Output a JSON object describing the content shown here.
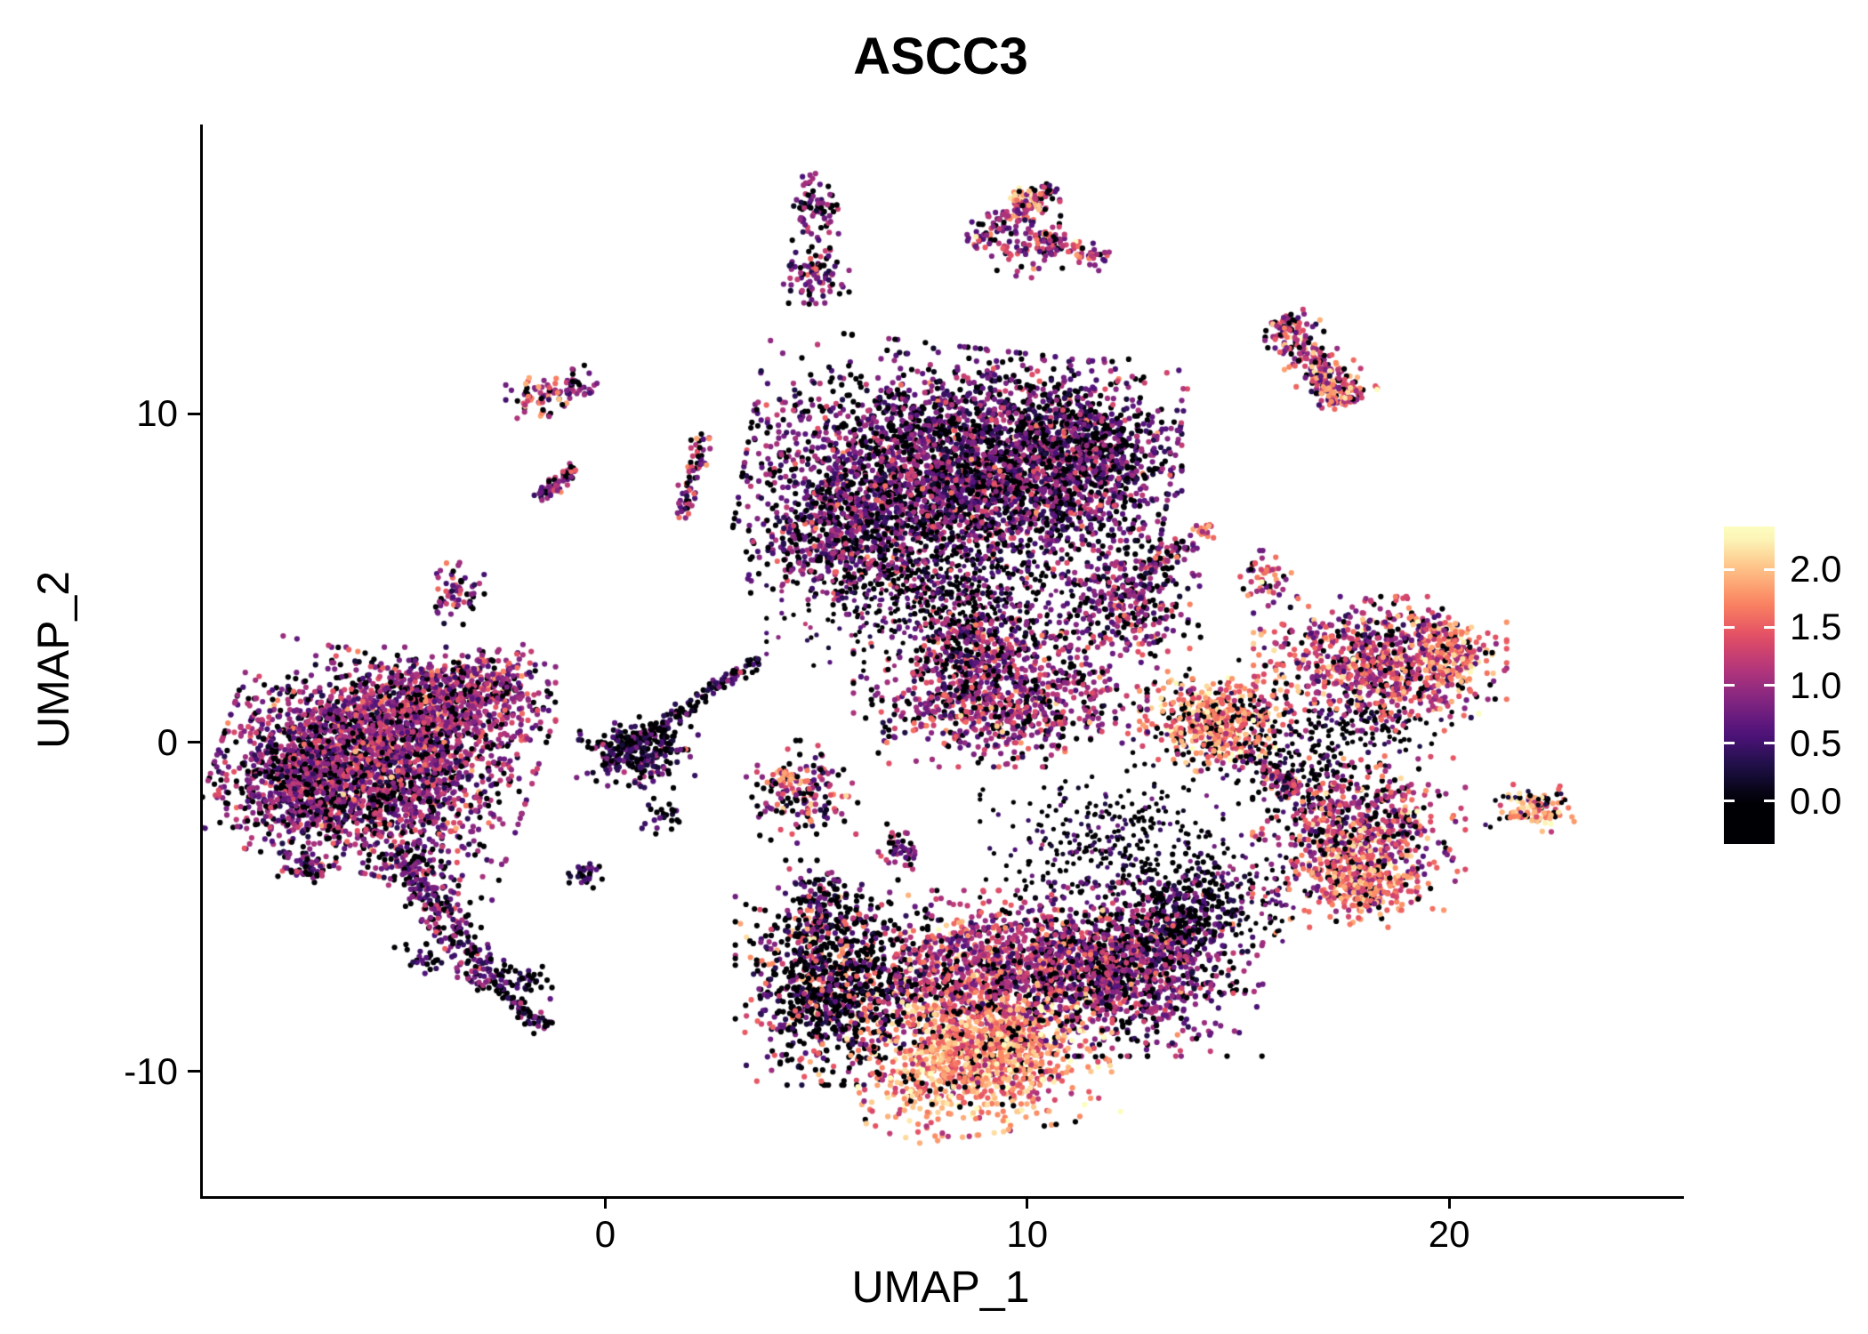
{
  "title": "ASCC3",
  "chart_data": {
    "type": "scatter",
    "title": "ASCC3",
    "xlabel": "UMAP_1",
    "ylabel": "UMAP_2",
    "x_range": [
      -9.6,
      25.5
    ],
    "y_range": [
      -13.8,
      18.8
    ],
    "x_ticks": [
      {
        "value": 0,
        "label": "0"
      },
      {
        "value": 10,
        "label": "10"
      },
      {
        "value": 20,
        "label": "20"
      }
    ],
    "y_ticks": [
      {
        "value": -10,
        "label": "-10"
      },
      {
        "value": 0,
        "label": "0"
      },
      {
        "value": 10,
        "label": "10"
      }
    ],
    "grid": false,
    "background": "#ffffff",
    "legend_position": "right",
    "colorbar": {
      "ticks": [
        {
          "value": 2.0,
          "label": "2.0"
        },
        {
          "value": 1.5,
          "label": "1.5"
        },
        {
          "value": 1.0,
          "label": "1.0"
        },
        {
          "value": 0.5,
          "label": "0.5"
        },
        {
          "value": 0.0,
          "label": "0.0"
        }
      ],
      "bar_value_top": 2.37,
      "bar_value_bottom": -0.37,
      "value_max": 2.3
    },
    "colormap": {
      "name": "magma",
      "stops": [
        [
          0,
          "#000004"
        ],
        [
          0.125,
          "#1c1044"
        ],
        [
          0.25,
          "#4f127b"
        ],
        [
          0.375,
          "#812581"
        ],
        [
          0.5,
          "#b5367a"
        ],
        [
          0.625,
          "#e55064"
        ],
        [
          0.75,
          "#fb8761"
        ],
        [
          0.875,
          "#fec287"
        ],
        [
          1,
          "#fcfdbf"
        ]
      ]
    },
    "point_radius_px": 3.1,
    "clusters": [
      {
        "name": "left-main",
        "shape": "blob",
        "cx": -5.5,
        "cy": -0.7,
        "sx": 1.55,
        "sy": 1.35,
        "rot": -15,
        "n": 2400,
        "expr_mean": 0.95,
        "expr_sd": 0.38,
        "zero_frac": 0.2
      },
      {
        "name": "left-main-top",
        "shape": "blob",
        "cx": -4.0,
        "cy": 1.1,
        "sx": 1.15,
        "sy": 0.75,
        "n": 650,
        "expr_mean": 1.0,
        "expr_sd": 0.35,
        "zero_frac": 0.18
      },
      {
        "name": "left-main-west",
        "shape": "blob",
        "cx": -7.3,
        "cy": -1.2,
        "sx": 0.8,
        "sy": 0.9,
        "n": 450,
        "expr_mean": 0.8,
        "expr_sd": 0.35,
        "zero_frac": 0.3
      },
      {
        "name": "left-arm-ne",
        "shape": "blob",
        "cx": -2.7,
        "cy": 1.9,
        "sx": 0.5,
        "sy": 0.45,
        "n": 130,
        "expr_mean": 1.05,
        "expr_sd": 0.35,
        "zero_frac": 0.2
      },
      {
        "name": "left-tail",
        "shape": "strip",
        "x1": -5.0,
        "y1": -3.2,
        "x2": -2.7,
        "y2": -7.4,
        "sigma": 0.3,
        "n": 300,
        "expr_mean": 0.75,
        "expr_sd": 0.35,
        "zero_frac": 0.3
      },
      {
        "name": "left-tail-tip",
        "shape": "strip",
        "x1": -2.7,
        "y1": -7.4,
        "x2": -1.5,
        "y2": -8.7,
        "sigma": 0.12,
        "n": 70,
        "expr_mean": 0.6,
        "expr_sd": 0.3,
        "zero_frac": 0.4
      },
      {
        "name": "left-satellite-sw",
        "shape": "blob",
        "cx": -7.1,
        "cy": -3.9,
        "sx": 0.3,
        "sy": 0.2,
        "n": 45,
        "expr_mean": 0.8,
        "expr_sd": 0.3,
        "zero_frac": 0.3
      },
      {
        "name": "sat-upper-left",
        "shape": "blob",
        "cx": -3.6,
        "cy": 4.6,
        "sx": 0.28,
        "sy": 0.42,
        "n": 60,
        "expr_mean": 0.9,
        "expr_sd": 0.35,
        "zero_frac": 0.2
      },
      {
        "name": "sat-strand-nw",
        "shape": "strip",
        "x1": -1.6,
        "y1": 7.4,
        "x2": -0.8,
        "y2": 8.4,
        "sigma": 0.12,
        "n": 55,
        "expr_mean": 1.0,
        "expr_sd": 0.4,
        "zero_frac": 0.2
      },
      {
        "name": "sat-nw-orange",
        "shape": "blob",
        "cx": -1.7,
        "cy": 10.5,
        "sx": 0.3,
        "sy": 0.3,
        "n": 55,
        "expr_mean": 1.3,
        "expr_sd": 0.4,
        "zero_frac": 0.15
      },
      {
        "name": "sat-nw-purple",
        "shape": "blob",
        "cx": -0.8,
        "cy": 10.8,
        "sx": 0.25,
        "sy": 0.28,
        "n": 45,
        "expr_mean": 0.9,
        "expr_sd": 0.3,
        "zero_frac": 0.2
      },
      {
        "name": "sat-small-dark-a",
        "shape": "blob",
        "cx": -0.5,
        "cy": -4.0,
        "sx": 0.25,
        "sy": 0.18,
        "n": 28,
        "expr_mean": 0.5,
        "expr_sd": 0.3,
        "zero_frac": 0.5
      },
      {
        "name": "sat-small-dark-b",
        "shape": "blob",
        "cx": -4.5,
        "cy": -6.6,
        "sx": 0.25,
        "sy": 0.22,
        "n": 26,
        "expr_mean": 0.4,
        "expr_sd": 0.3,
        "zero_frac": 0.55
      },
      {
        "name": "sat-small-dark-c",
        "shape": "blob",
        "cx": -1.9,
        "cy": -7.2,
        "sx": 0.3,
        "sy": 0.25,
        "n": 30,
        "expr_mean": 0.5,
        "expr_sd": 0.3,
        "zero_frac": 0.5
      },
      {
        "name": "sat-small-dark-d",
        "shape": "blob",
        "cx": 1.3,
        "cy": -2.3,
        "sx": 0.25,
        "sy": 0.25,
        "n": 24,
        "expr_mean": 0.5,
        "expr_sd": 0.3,
        "zero_frac": 0.5
      },
      {
        "name": "bridge-knot",
        "shape": "blob",
        "cx": 0.7,
        "cy": -0.3,
        "sx": 0.6,
        "sy": 0.45,
        "n": 240,
        "expr_mean": 0.55,
        "expr_sd": 0.32,
        "zero_frac": 0.45
      },
      {
        "name": "bridge-diagonal",
        "shape": "strip",
        "x1": -0.2,
        "y1": -0.8,
        "x2": 3.6,
        "y2": 2.6,
        "sigma": 0.12,
        "n": 150,
        "expr_mean": 0.5,
        "expr_sd": 0.3,
        "zero_frac": 0.5
      },
      {
        "name": "strand-vertical",
        "shape": "strip",
        "x1": 1.8,
        "y1": 6.8,
        "x2": 2.2,
        "y2": 9.4,
        "sigma": 0.12,
        "n": 70,
        "expr_mean": 1.0,
        "expr_sd": 0.45,
        "zero_frac": 0.25
      },
      {
        "name": "top-main",
        "shape": "blob",
        "cx": 8.3,
        "cy": 8.3,
        "sx": 2.1,
        "sy": 1.55,
        "rot": -8,
        "n": 3000,
        "expr_mean": 0.75,
        "expr_sd": 0.4,
        "zero_frac": 0.3
      },
      {
        "name": "top-main-east",
        "shape": "blob",
        "cx": 11.2,
        "cy": 8.9,
        "sx": 1.0,
        "sy": 1.15,
        "n": 750,
        "expr_mean": 0.7,
        "expr_sd": 0.4,
        "zero_frac": 0.32
      },
      {
        "name": "top-main-sw",
        "shape": "blob",
        "cx": 5.5,
        "cy": 6.3,
        "sx": 1.0,
        "sy": 1.0,
        "n": 500,
        "expr_mean": 0.8,
        "expr_sd": 0.4,
        "zero_frac": 0.28
      },
      {
        "name": "top-main-spray-south",
        "shape": "blob",
        "cx": 7.6,
        "cy": 4.6,
        "sx": 1.6,
        "sy": 0.9,
        "n": 380,
        "expr_mean": 0.55,
        "expr_sd": 0.35,
        "zero_frac": 0.5,
        "r": 2.6
      },
      {
        "name": "sat-top-a",
        "shape": "blob",
        "cx": 4.9,
        "cy": 16.3,
        "sx": 0.3,
        "sy": 0.42,
        "n": 70,
        "expr_mean": 0.8,
        "expr_sd": 0.35,
        "zero_frac": 0.3
      },
      {
        "name": "sat-top-b",
        "shape": "blob",
        "cx": 4.9,
        "cy": 14.2,
        "sx": 0.34,
        "sy": 0.45,
        "n": 90,
        "expr_mean": 0.85,
        "expr_sd": 0.35,
        "zero_frac": 0.25
      },
      {
        "name": "top-claw-main",
        "shape": "strip",
        "x1": 8.6,
        "y1": 15.1,
        "x2": 10.6,
        "y2": 16.9,
        "sigma": 0.22,
        "n": 130,
        "expr_mean": 1.1,
        "expr_sd": 0.45,
        "zero_frac": 0.2
      },
      {
        "name": "top-claw-body",
        "shape": "blob",
        "cx": 10.1,
        "cy": 15.1,
        "sx": 0.5,
        "sy": 0.4,
        "n": 80,
        "expr_mean": 1.0,
        "expr_sd": 0.4,
        "zero_frac": 0.2
      },
      {
        "name": "top-claw-arm",
        "shape": "strip",
        "x1": 10.4,
        "y1": 15.4,
        "x2": 11.8,
        "y2": 14.6,
        "sigma": 0.15,
        "n": 60,
        "expr_mean": 1.2,
        "expr_sd": 0.45,
        "zero_frac": 0.15
      },
      {
        "name": "top-claw-hot",
        "shape": "blob",
        "cx": 9.9,
        "cy": 16.5,
        "sx": 0.18,
        "sy": 0.18,
        "n": 25,
        "expr_mean": 1.9,
        "expr_sd": 0.2,
        "zero_frac": 0.0
      },
      {
        "name": "right-top-diag",
        "shape": "strip",
        "x1": 15.9,
        "y1": 12.9,
        "x2": 17.6,
        "y2": 10.3,
        "sigma": 0.33,
        "n": 260,
        "expr_mean": 1.2,
        "expr_sd": 0.45,
        "zero_frac": 0.15
      },
      {
        "name": "right-top-hot",
        "shape": "blob",
        "cx": 17.3,
        "cy": 10.7,
        "sx": 0.25,
        "sy": 0.25,
        "n": 45,
        "expr_mean": 1.8,
        "expr_sd": 0.25,
        "zero_frac": 0.0
      },
      {
        "name": "center-main",
        "shape": "blob",
        "cx": 9.3,
        "cy": 1.3,
        "sx": 1.45,
        "sy": 0.85,
        "n": 850,
        "expr_mean": 1.0,
        "expr_sd": 0.42,
        "zero_frac": 0.2
      },
      {
        "name": "center-upper",
        "shape": "blob",
        "cx": 8.8,
        "cy": 3.1,
        "sx": 0.9,
        "sy": 0.6,
        "n": 280,
        "expr_mean": 0.9,
        "expr_sd": 0.4,
        "zero_frac": 0.25
      },
      {
        "name": "center-spray",
        "shape": "blob",
        "cx": 8.2,
        "cy": 4.4,
        "sx": 1.7,
        "sy": 1.0,
        "n": 320,
        "expr_mean": 0.7,
        "expr_sd": 0.45,
        "zero_frac": 0.4,
        "r": 2.6
      },
      {
        "name": "center-claw",
        "shape": "blob",
        "cx": 12.3,
        "cy": 4.3,
        "sx": 0.75,
        "sy": 0.9,
        "n": 330,
        "expr_mean": 0.9,
        "expr_sd": 0.4,
        "zero_frac": 0.25
      },
      {
        "name": "center-claw-tail",
        "shape": "strip",
        "x1": 12.7,
        "y1": 5.2,
        "x2": 13.9,
        "y2": 6.2,
        "sigma": 0.14,
        "n": 60,
        "expr_mean": 1.0,
        "expr_sd": 0.4,
        "zero_frac": 0.2
      },
      {
        "name": "center-claw-hot",
        "shape": "blob",
        "cx": 14.1,
        "cy": 6.4,
        "sx": 0.15,
        "sy": 0.15,
        "n": 15,
        "expr_mean": 1.5,
        "expr_sd": 0.3,
        "zero_frac": 0.0
      },
      {
        "name": "sat-mid-left",
        "shape": "blob",
        "cx": 4.6,
        "cy": -1.5,
        "sx": 0.55,
        "sy": 0.65,
        "n": 150,
        "expr_mean": 1.0,
        "expr_sd": 0.5,
        "zero_frac": 0.3
      },
      {
        "name": "sat-mid-left-hot",
        "shape": "blob",
        "cx": 4.2,
        "cy": -1.1,
        "sx": 0.2,
        "sy": 0.2,
        "n": 25,
        "expr_mean": 1.7,
        "expr_sd": 0.25,
        "zero_frac": 0.0
      },
      {
        "name": "sat-below-a",
        "shape": "blob",
        "cx": 5.0,
        "cy": -4.9,
        "sx": 0.4,
        "sy": 0.55,
        "n": 110,
        "expr_mean": 0.8,
        "expr_sd": 0.4,
        "zero_frac": 0.35
      },
      {
        "name": "sat-below-b",
        "shape": "blob",
        "cx": 6.9,
        "cy": -3.2,
        "sx": 0.25,
        "sy": 0.3,
        "n": 45,
        "expr_mean": 0.7,
        "expr_sd": 0.35,
        "zero_frac": 0.4
      },
      {
        "name": "bottom-left-dark",
        "shape": "blob",
        "cx": 5.3,
        "cy": -7.3,
        "sx": 0.95,
        "sy": 1.3,
        "n": 850,
        "expr_mean": 0.45,
        "expr_sd": 0.4,
        "zero_frac": 0.55
      },
      {
        "name": "bottom-left-sprinkle",
        "shape": "blob",
        "cx": 5.3,
        "cy": -7.3,
        "sx": 0.9,
        "sy": 1.25,
        "n": 160,
        "expr_mean": 1.6,
        "expr_sd": 0.3,
        "zero_frac": 0.0
      },
      {
        "name": "bottom-bright",
        "shape": "blob",
        "cx": 8.8,
        "cy": -9.5,
        "sx": 1.25,
        "sy": 1.0,
        "rot": 10,
        "n": 1250,
        "expr_mean": 1.75,
        "expr_sd": 0.35,
        "zero_frac": 0.08
      },
      {
        "name": "bottom-mid",
        "shape": "blob",
        "cx": 9.4,
        "cy": -6.9,
        "sx": 1.6,
        "sy": 1.0,
        "n": 1250,
        "expr_mean": 1.15,
        "expr_sd": 0.45,
        "zero_frac": 0.15
      },
      {
        "name": "bottom-right-purple",
        "shape": "blob",
        "cx": 12.4,
        "cy": -6.9,
        "sx": 1.3,
        "sy": 1.1,
        "n": 1050,
        "expr_mean": 0.85,
        "expr_sd": 0.4,
        "zero_frac": 0.25
      },
      {
        "name": "bottom-right-dark",
        "shape": "blob",
        "cx": 13.6,
        "cy": -5.3,
        "sx": 0.7,
        "sy": 0.8,
        "n": 280,
        "expr_mean": 0.5,
        "expr_sd": 0.32,
        "zero_frac": 0.5
      },
      {
        "name": "bottom-spray-north",
        "shape": "blob",
        "cx": 11.7,
        "cy": -3.1,
        "sx": 1.2,
        "sy": 1.0,
        "n": 330,
        "expr_mean": 0.4,
        "expr_sd": 0.3,
        "zero_frac": 0.6,
        "r": 2.6
      },
      {
        "name": "bottom-east-link",
        "shape": "blob",
        "cx": 15.2,
        "cy": -4.5,
        "sx": 0.7,
        "sy": 0.7,
        "n": 130,
        "expr_mean": 0.6,
        "expr_sd": 0.35,
        "zero_frac": 0.45,
        "r": 2.6
      },
      {
        "name": "midright-bright",
        "shape": "blob",
        "cx": 14.4,
        "cy": 0.6,
        "sx": 0.75,
        "sy": 0.65,
        "n": 420,
        "expr_mean": 1.7,
        "expr_sd": 0.35,
        "zero_frac": 0.1
      },
      {
        "name": "midright-dark-ring",
        "shape": "blob",
        "cx": 14.4,
        "cy": 0.6,
        "sx": 1.1,
        "sy": 0.95,
        "n": 130,
        "expr_mean": 0.3,
        "expr_sd": 0.25,
        "zero_frac": 0.65,
        "r": 2.7
      },
      {
        "name": "midright-tail",
        "shape": "strip",
        "x1": 15.1,
        "y1": -0.3,
        "x2": 16.3,
        "y2": -1.5,
        "sigma": 0.2,
        "n": 80,
        "expr_mean": 1.0,
        "expr_sd": 0.4,
        "zero_frac": 0.3
      },
      {
        "name": "sat-claw-west",
        "shape": "blob",
        "cx": 15.5,
        "cy": 5.0,
        "sx": 0.3,
        "sy": 0.35,
        "n": 50,
        "expr_mean": 1.25,
        "expr_sd": 0.4,
        "zero_frac": 0.15
      },
      {
        "name": "right-main",
        "shape": "blob",
        "cx": 18.3,
        "cy": 2.4,
        "sx": 1.25,
        "sy": 0.85,
        "n": 850,
        "expr_mean": 1.25,
        "expr_sd": 0.45,
        "zero_frac": 0.15
      },
      {
        "name": "right-main-hot",
        "shape": "blob",
        "cx": 19.9,
        "cy": 2.6,
        "sx": 0.45,
        "sy": 0.5,
        "n": 150,
        "expr_mean": 1.75,
        "expr_sd": 0.3,
        "zero_frac": 0.05
      },
      {
        "name": "right-main-darkfringe",
        "shape": "blob",
        "cx": 17.6,
        "cy": 0.4,
        "sx": 1.0,
        "sy": 0.45,
        "n": 150,
        "expr_mean": 0.4,
        "expr_sd": 0.3,
        "zero_frac": 0.6,
        "r": 2.7
      },
      {
        "name": "rightbottom-main",
        "shape": "blob",
        "cx": 17.8,
        "cy": -2.7,
        "sx": 1.05,
        "sy": 1.0,
        "n": 650,
        "expr_mean": 1.3,
        "expr_sd": 0.45,
        "zero_frac": 0.15
      },
      {
        "name": "rightbottom-hot",
        "shape": "blob",
        "cx": 17.9,
        "cy": -4.3,
        "sx": 0.75,
        "sy": 0.55,
        "n": 280,
        "expr_mean": 1.6,
        "expr_sd": 0.3,
        "zero_frac": 0.08
      },
      {
        "name": "rightbottom-darkfringe",
        "shape": "blob",
        "cx": 16.5,
        "cy": -1.2,
        "sx": 0.8,
        "sy": 0.6,
        "n": 110,
        "expr_mean": 0.4,
        "expr_sd": 0.3,
        "zero_frac": 0.6,
        "r": 2.7
      },
      {
        "name": "farright-hot",
        "shape": "blob",
        "cx": 22.0,
        "cy": -2.0,
        "sx": 0.38,
        "sy": 0.3,
        "n": 85,
        "expr_mean": 1.8,
        "expr_sd": 0.3,
        "zero_frac": 0.1
      },
      {
        "name": "farright-dark",
        "shape": "blob",
        "cx": 22.0,
        "cy": -2.0,
        "sx": 0.5,
        "sy": 0.4,
        "n": 28,
        "expr_mean": 0.3,
        "expr_sd": 0.25,
        "zero_frac": 0.6,
        "r": 2.7
      }
    ]
  }
}
